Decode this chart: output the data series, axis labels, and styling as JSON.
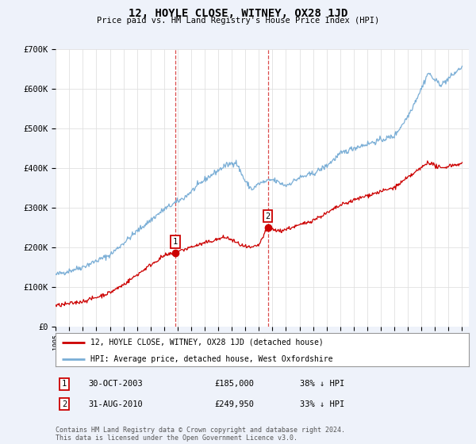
{
  "title": "12, HOYLE CLOSE, WITNEY, OX28 1JD",
  "subtitle": "Price paid vs. HM Land Registry's House Price Index (HPI)",
  "legend_line1": "12, HOYLE CLOSE, WITNEY, OX28 1JD (detached house)",
  "legend_line2": "HPI: Average price, detached house, West Oxfordshire",
  "purchase1_date": "30-OCT-2003",
  "purchase1_price": "£185,000",
  "purchase1_hpi": "38% ↓ HPI",
  "purchase2_date": "31-AUG-2010",
  "purchase2_price": "£249,950",
  "purchase2_hpi": "33% ↓ HPI",
  "footer": "Contains HM Land Registry data © Crown copyright and database right 2024.\nThis data is licensed under the Open Government Licence v3.0.",
  "red_color": "#cc0000",
  "blue_color": "#7aaed6",
  "vline_color": "#cc0000",
  "marker_box_color": "#cc0000",
  "grid_color": "#e0e0e0",
  "bg_color": "#eef2fa",
  "plot_bg": "#ffffff",
  "ylim": [
    0,
    700000
  ],
  "yticks": [
    0,
    100000,
    200000,
    300000,
    400000,
    500000,
    600000,
    700000
  ],
  "ytick_labels": [
    "£0",
    "£100K",
    "£200K",
    "£300K",
    "£400K",
    "£500K",
    "£600K",
    "£700K"
  ],
  "purchase1_x": 2003.83,
  "purchase1_y": 185000,
  "purchase2_x": 2010.66,
  "purchase2_y": 249950,
  "xmin": 1995.0,
  "xmax": 2025.5
}
